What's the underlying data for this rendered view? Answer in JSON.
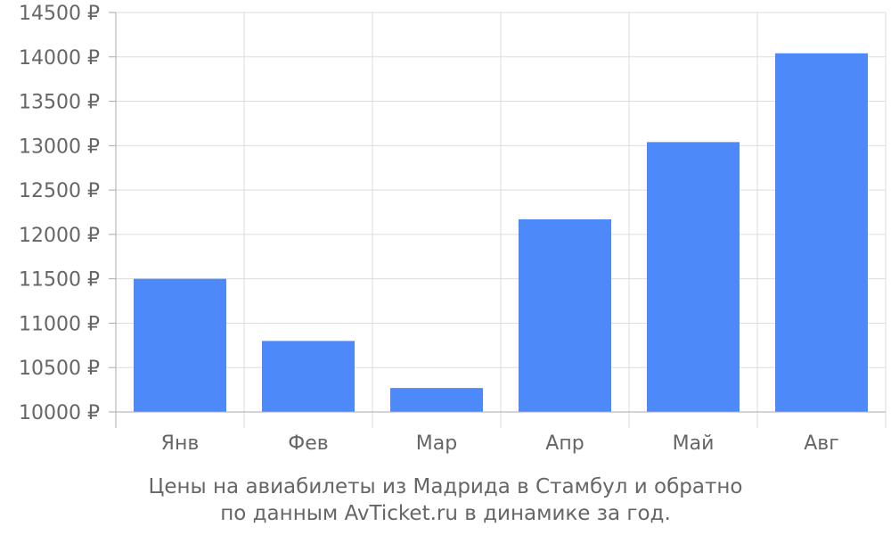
{
  "chart_data": {
    "type": "bar",
    "categories": [
      "Янв",
      "Фев",
      "Мар",
      "Апр",
      "Май",
      "Авг"
    ],
    "values": [
      11500,
      10800,
      10270,
      12170,
      13040,
      14040
    ],
    "y_ticks": [
      "10000 ₽",
      "10500 ₽",
      "11000 ₽",
      "11500 ₽",
      "12000 ₽",
      "12500 ₽",
      "13000 ₽",
      "13500 ₽",
      "14000 ₽",
      "14500 ₽"
    ],
    "ylim": [
      10000,
      14500
    ],
    "ystep": 500,
    "grid": true,
    "bar_color": "#4d89f9",
    "grid_color": "#dddddd",
    "axis_color": "#aaaaaa",
    "label_color": "#666666"
  },
  "caption": {
    "line1": "Цены на авиабилеты из Мадрида в Стамбул и обратно",
    "line2": "по данным AvTicket.ru в динамике за год."
  }
}
